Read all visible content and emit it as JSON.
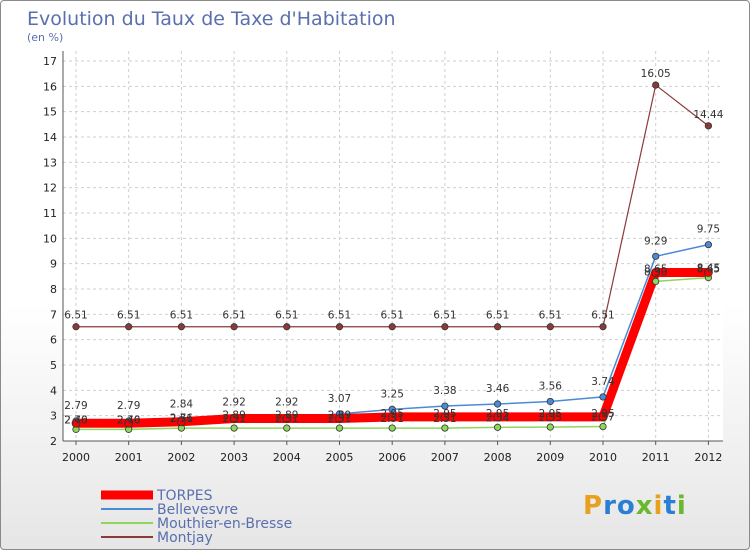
{
  "chart_data": {
    "type": "line",
    "title": "Evolution du Taux de Taxe d'Habitation",
    "subtitle": "(en %)",
    "xlabel": "",
    "ylabel": "",
    "ylim": [
      2,
      17
    ],
    "y_ticks": [
      2,
      3,
      4,
      5,
      6,
      7,
      8,
      9,
      10,
      11,
      12,
      13,
      14,
      15,
      16,
      17
    ],
    "categories": [
      "2000",
      "2001",
      "2002",
      "2003",
      "2004",
      "2005",
      "2006",
      "2007",
      "2008",
      "2009",
      "2010",
      "2011",
      "2012"
    ],
    "grid": true,
    "legend_position": "bottom-left",
    "series": [
      {
        "name": "TORPES",
        "color": "#ff0000",
        "values": [
          2.7,
          2.7,
          2.76,
          2.89,
          2.89,
          2.89,
          2.95,
          2.95,
          2.95,
          2.95,
          2.95,
          8.65,
          8.65
        ],
        "labels": [
          "2.70",
          "2.70",
          "2.76",
          "2.89",
          "2.89",
          "2.89",
          "2.95",
          "2.95",
          "2.95",
          "2.95",
          "2.95",
          "8.65",
          "8.65"
        ]
      },
      {
        "name": "Bellevesvre",
        "color": "#4a8ad6",
        "values": [
          2.79,
          2.79,
          2.84,
          2.92,
          2.92,
          3.07,
          3.25,
          3.38,
          3.46,
          3.56,
          3.74,
          9.29,
          9.75
        ],
        "labels": [
          "2.79",
          "2.79",
          "2.84",
          "2.92",
          "2.92",
          "3.07",
          "3.25",
          "3.38",
          "3.46",
          "3.56",
          "3.74",
          "9.29",
          "9.75"
        ]
      },
      {
        "name": "Mouthier-en-Bresse",
        "color": "#8fd65a",
        "values": [
          2.46,
          2.46,
          2.51,
          2.51,
          2.51,
          2.51,
          2.51,
          2.51,
          2.54,
          2.55,
          2.57,
          8.3,
          8.45
        ],
        "labels": [
          "2.46",
          "2.46",
          "2.51",
          "2.51",
          "2.51",
          "2.51",
          "2.51",
          "2.51",
          "2.54",
          "2.55",
          "2.57",
          "8.30",
          "8.45"
        ]
      },
      {
        "name": "Montjay",
        "color": "#8b3a3a",
        "values": [
          6.51,
          6.51,
          6.51,
          6.51,
          6.51,
          6.51,
          6.51,
          6.51,
          6.51,
          6.51,
          6.51,
          16.05,
          14.44
        ],
        "labels": [
          "6.51",
          "6.51",
          "6.51",
          "6.51",
          "6.51",
          "6.51",
          "6.51",
          "6.51",
          "6.51",
          "6.51",
          "6.51",
          "16.05",
          "14.44"
        ]
      }
    ]
  },
  "logo": {
    "letters": [
      "P",
      "r",
      "o",
      "x",
      "i",
      "t",
      "i"
    ],
    "colors": [
      "#e8a020",
      "#2a7fd4",
      "#2a7fd4",
      "#6ab82e",
      "#e8a020",
      "#2a7fd4",
      "#6ab82e"
    ]
  }
}
